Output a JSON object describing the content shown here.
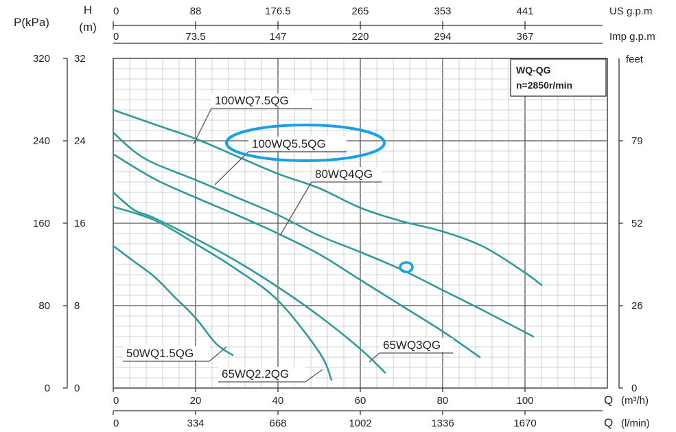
{
  "chart_data": {
    "type": "line",
    "title": "WQ-QG",
    "subtitle": "n=2850r/min",
    "x_axis": {
      "label": "Q",
      "unit": "(m³/h)",
      "lim": [
        0,
        120
      ],
      "ticks": [
        0,
        20,
        40,
        60,
        80,
        100
      ],
      "tick_labels": [
        "0",
        "20",
        "40",
        "60",
        "80",
        "100"
      ]
    },
    "x_axis_lmin": {
      "label": "Q",
      "unit": "(l/min)",
      "tick_labels": [
        "0",
        "334",
        "668",
        "1002",
        "1336",
        "1670"
      ]
    },
    "top_axis_us": {
      "label": "US g.p.m",
      "tick_labels": [
        "0",
        "88",
        "176.5",
        "265",
        "353",
        "441"
      ]
    },
    "top_axis_imp": {
      "label": "Imp g.p.m",
      "tick_labels": [
        "0",
        "73.5",
        "147",
        "220",
        "294",
        "367"
      ]
    },
    "y_axis": {
      "label_line1": "H",
      "label_line2": "(m)",
      "lim": [
        0,
        32
      ],
      "ticks": [
        0,
        8,
        16,
        24,
        32
      ],
      "tick_labels": [
        "0",
        "8",
        "16",
        "24",
        "32"
      ]
    },
    "y_axis_kpa": {
      "label": "P(kPa)",
      "tick_labels": [
        "0",
        "80",
        "160",
        "240",
        "320"
      ]
    },
    "y_axis_feet": {
      "label": "feet",
      "tick_labels": [
        "0",
        "26",
        "52",
        "79"
      ]
    },
    "grid": true,
    "series": [
      {
        "name": "100WQ7.5QG",
        "color": "#2e9b9b",
        "x": [
          0,
          10,
          20,
          30,
          40,
          50,
          60,
          70,
          80,
          90,
          100,
          104
        ],
        "y": [
          27,
          25.6,
          24.2,
          22.5,
          20.8,
          19.4,
          17.5,
          16.2,
          15.2,
          13.7,
          11.2,
          10
        ]
      },
      {
        "name": "100WQ5.5QG",
        "color": "#2e9b9b",
        "x": [
          0,
          5,
          10,
          20,
          30,
          40,
          50,
          60,
          70,
          80,
          90,
          102
        ],
        "y": [
          24.8,
          23.0,
          21.8,
          20.2,
          18.5,
          16.8,
          14.8,
          13.2,
          11.5,
          9.5,
          7.5,
          5
        ]
      },
      {
        "name": "80WQ4QG",
        "color": "#2e9b9b",
        "x": [
          0,
          10,
          20,
          30,
          40,
          50,
          60,
          70,
          80,
          89
        ],
        "y": [
          22.7,
          20.3,
          18.5,
          16.8,
          15.0,
          13.0,
          10.5,
          8.0,
          5.5,
          3
        ]
      },
      {
        "name": "65WQ3QG",
        "color": "#2e9b9b",
        "x": [
          0,
          5,
          10,
          20,
          30,
          40,
          50,
          60,
          66
        ],
        "y": [
          19.0,
          17.3,
          16.5,
          14.5,
          12.3,
          9.8,
          7.0,
          3.8,
          1.5
        ]
      },
      {
        "name": "65WQ2.2QG",
        "color": "#2e9b9b",
        "x": [
          0,
          10,
          20,
          30,
          40,
          50,
          53
        ],
        "y": [
          17.6,
          16.3,
          14.0,
          11.5,
          8.5,
          3.5,
          0.8
        ]
      },
      {
        "name": "50WQ1.5QG",
        "color": "#2e9b9b",
        "x": [
          0,
          5,
          10,
          15,
          20,
          25,
          29
        ],
        "y": [
          13.8,
          12.3,
          10.8,
          8.8,
          6.8,
          4.3,
          3.2
        ]
      }
    ],
    "curve_labels": [
      {
        "text": "100WQ7.5QG"
      },
      {
        "text": "100WQ5.5QG"
      },
      {
        "text": "80WQ4QG"
      },
      {
        "text": "65WQ3QG"
      },
      {
        "text": "65WQ2.2QG"
      },
      {
        "text": "50WQ1.5QG"
      }
    ],
    "highlight_color": "#1aa0e6",
    "curve_color": "#2e9b9b"
  }
}
